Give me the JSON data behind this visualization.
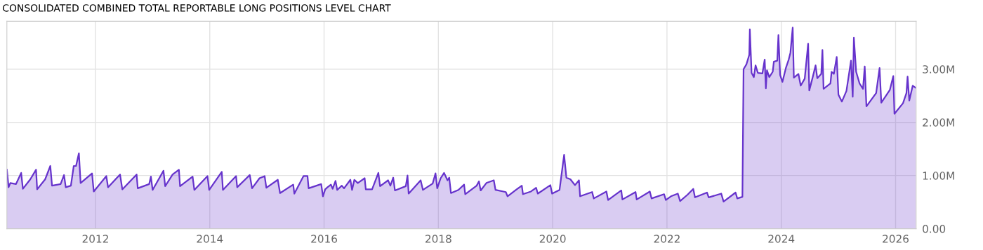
{
  "chart_data": {
    "type": "area",
    "title": "CONSOLIDATED COMBINED TOTAL REPORTABLE LONG POSITIONS LEVEL CHART",
    "x": [
      2010.45,
      2010.48,
      2010.51,
      2010.61,
      2010.7,
      2010.73,
      2010.86,
      2010.96,
      2010.98,
      2011.12,
      2011.21,
      2011.24,
      2011.39,
      2011.45,
      2011.48,
      2011.57,
      2011.62,
      2011.66,
      2011.71,
      2011.74,
      2011.94,
      2011.97,
      2012.19,
      2012.22,
      2012.43,
      2012.47,
      2012.72,
      2012.74,
      2012.94,
      2012.97,
      2013.0,
      2013.19,
      2013.22,
      2013.35,
      2013.46,
      2013.48,
      2013.7,
      2013.73,
      2013.96,
      2013.99,
      2014.21,
      2014.23,
      2014.46,
      2014.48,
      2014.7,
      2014.74,
      2014.87,
      2014.96,
      2014.99,
      2015.19,
      2015.23,
      2015.46,
      2015.48,
      2015.64,
      2015.71,
      2015.73,
      2015.95,
      2015.98,
      2016.02,
      2016.06,
      2016.12,
      2016.15,
      2016.2,
      2016.23,
      2016.31,
      2016.35,
      2016.46,
      2016.49,
      2016.53,
      2016.59,
      2016.71,
      2016.73,
      2016.84,
      2016.95,
      2016.98,
      2017.12,
      2017.16,
      2017.21,
      2017.24,
      2017.43,
      2017.46,
      2017.48,
      2017.69,
      2017.73,
      2017.9,
      2017.95,
      2017.98,
      2018.04,
      2018.1,
      2018.16,
      2018.19,
      2018.22,
      2018.35,
      2018.45,
      2018.47,
      2018.67,
      2018.71,
      2018.74,
      2018.84,
      2018.97,
      2019.0,
      2019.18,
      2019.21,
      2019.37,
      2019.46,
      2019.48,
      2019.62,
      2019.71,
      2019.74,
      2019.96,
      2019.99,
      2020.12,
      2020.2,
      2020.24,
      2020.31,
      2020.39,
      2020.46,
      2020.48,
      2020.69,
      2020.72,
      2020.94,
      2020.97,
      2021.2,
      2021.22,
      2021.45,
      2021.47,
      2021.7,
      2021.73,
      2021.95,
      2021.98,
      2022.07,
      2022.19,
      2022.23,
      2022.36,
      2022.46,
      2022.49,
      2022.7,
      2022.73,
      2022.95,
      2022.99,
      2023.2,
      2023.23,
      2023.32,
      2023.34,
      2023.39,
      2023.44,
      2023.45,
      2023.48,
      2023.52,
      2023.55,
      2023.59,
      2023.67,
      2023.71,
      2023.73,
      2023.75,
      2023.79,
      2023.85,
      2023.87,
      2023.93,
      2023.95,
      2023.98,
      2024.02,
      2024.08,
      2024.13,
      2024.16,
      2024.2,
      2024.22,
      2024.3,
      2024.34,
      2024.41,
      2024.47,
      2024.49,
      2024.55,
      2024.6,
      2024.63,
      2024.7,
      2024.72,
      2024.74,
      2024.86,
      2024.88,
      2024.92,
      2024.97,
      2025.0,
      2025.06,
      2025.14,
      2025.22,
      2025.25,
      2025.27,
      2025.31,
      2025.37,
      2025.43,
      2025.46,
      2025.49,
      2025.66,
      2025.72,
      2025.75,
      2025.82,
      2025.9,
      2025.96,
      2025.98,
      2026.13,
      2026.19,
      2026.21,
      2026.24,
      2026.3,
      2026.35
    ],
    "series": [
      {
        "color": "#6633cc",
        "values": [
          1.11,
          0.78,
          0.86,
          0.84,
          1.05,
          0.75,
          0.93,
          1.11,
          0.74,
          0.93,
          1.18,
          0.81,
          0.84,
          1.01,
          0.78,
          0.81,
          1.18,
          1.18,
          1.42,
          0.86,
          1.04,
          0.7,
          0.99,
          0.78,
          1.02,
          0.74,
          1.02,
          0.76,
          0.84,
          0.98,
          0.73,
          1.09,
          0.8,
          1.02,
          1.11,
          0.8,
          0.98,
          0.73,
          0.99,
          0.73,
          1.07,
          0.73,
          0.99,
          0.78,
          1.01,
          0.76,
          0.95,
          0.99,
          0.77,
          0.92,
          0.67,
          0.83,
          0.66,
          0.99,
          0.99,
          0.76,
          0.84,
          0.61,
          0.74,
          0.78,
          0.83,
          0.75,
          0.9,
          0.73,
          0.81,
          0.76,
          0.92,
          0.73,
          0.92,
          0.86,
          0.95,
          0.74,
          0.74,
          1.05,
          0.8,
          0.91,
          0.81,
          0.96,
          0.72,
          0.8,
          1.0,
          0.66,
          0.91,
          0.73,
          0.85,
          1.04,
          0.76,
          0.95,
          1.05,
          0.91,
          0.96,
          0.67,
          0.73,
          0.83,
          0.65,
          0.81,
          0.89,
          0.72,
          0.86,
          0.91,
          0.73,
          0.69,
          0.61,
          0.74,
          0.81,
          0.65,
          0.7,
          0.77,
          0.66,
          0.82,
          0.66,
          0.73,
          1.39,
          0.96,
          0.93,
          0.82,
          0.91,
          0.61,
          0.69,
          0.57,
          0.7,
          0.54,
          0.72,
          0.55,
          0.69,
          0.55,
          0.7,
          0.57,
          0.65,
          0.54,
          0.61,
          0.66,
          0.52,
          0.64,
          0.75,
          0.59,
          0.68,
          0.59,
          0.66,
          0.51,
          0.68,
          0.57,
          0.6,
          3.0,
          3.09,
          3.27,
          3.75,
          2.93,
          2.85,
          3.07,
          2.93,
          2.92,
          3.18,
          2.64,
          2.98,
          2.85,
          2.95,
          3.14,
          3.16,
          3.64,
          2.89,
          2.76,
          3.02,
          3.18,
          3.31,
          3.78,
          2.84,
          2.91,
          2.69,
          2.82,
          3.48,
          2.6,
          2.85,
          3.07,
          2.83,
          2.91,
          3.36,
          2.63,
          2.73,
          2.95,
          2.91,
          3.23,
          2.52,
          2.39,
          2.59,
          3.16,
          2.48,
          3.59,
          2.95,
          2.73,
          2.63,
          3.05,
          2.3,
          2.55,
          3.02,
          2.37,
          2.48,
          2.61,
          2.87,
          2.16,
          2.36,
          2.55,
          2.86,
          2.41,
          2.69,
          2.65
        ]
      }
    ],
    "xlim": [
      2010.45,
      2026.36
    ],
    "xticks": [
      2012,
      2014,
      2016,
      2018,
      2020,
      2022,
      2024,
      2026
    ],
    "ylim": [
      0,
      3.9
    ],
    "yticks": [
      {
        "value": 0,
        "label": "0.00"
      },
      {
        "value": 1,
        "label": "1.00M"
      },
      {
        "value": 2,
        "label": "2.00M"
      },
      {
        "value": 3,
        "label": "3.00M"
      }
    ],
    "grid": true
  }
}
